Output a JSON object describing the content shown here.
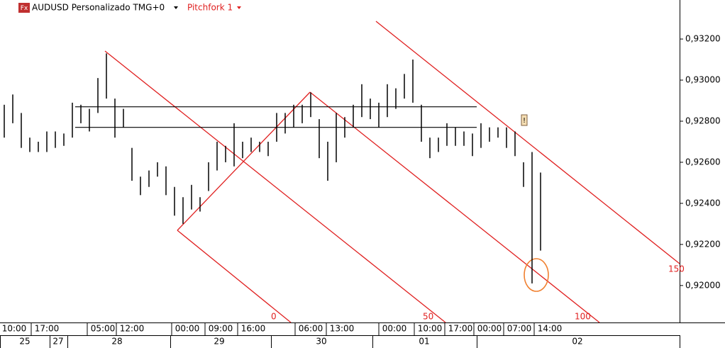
{
  "header": {
    "icon": "Fx",
    "symbol": "AUDUSD Personalizado TMG+0",
    "tool": "Pitchfork 1"
  },
  "chart_data": {
    "type": "range",
    "series": [
      {
        "color": "#000000",
        "high": [
          0.9288,
          0.9293,
          0.9284,
          0.9272,
          0.927,
          0.9275,
          0.9275,
          0.9274,
          0.9289,
          0.9288,
          0.9286,
          0.9301,
          0.9313,
          0.9291,
          0.9286,
          0.9267,
          0.9253,
          0.9256,
          0.926,
          0.9258,
          0.9248,
          0.9243,
          0.9249,
          0.9243,
          0.926,
          0.927,
          0.9268,
          0.9279,
          0.927,
          0.9272,
          0.927,
          0.927,
          0.9284,
          0.9284,
          0.9288,
          0.9288,
          0.9294,
          0.9281,
          0.927,
          0.9284,
          0.9282,
          0.9288,
          0.9298,
          0.9291,
          0.9289,
          0.9298,
          0.9296,
          0.9303,
          0.931,
          0.9288,
          0.9272,
          0.9272,
          0.9279,
          0.9277,
          0.9275,
          0.9274,
          0.9279,
          0.9277,
          0.9277,
          0.9277,
          0.9275,
          0.926,
          0.9265,
          0.9255
        ],
        "low": [
          0.9272,
          0.9279,
          0.9267,
          0.9265,
          0.9265,
          0.9265,
          0.9267,
          0.9268,
          0.9272,
          0.9279,
          0.9275,
          0.9284,
          0.9291,
          0.9272,
          0.9277,
          0.9251,
          0.9244,
          0.9248,
          0.9253,
          0.9244,
          0.9234,
          0.923,
          0.9237,
          0.9236,
          0.9246,
          0.9256,
          0.926,
          0.9258,
          0.9262,
          0.9265,
          0.9265,
          0.9263,
          0.927,
          0.9274,
          0.9277,
          0.9279,
          0.9282,
          0.9262,
          0.9251,
          0.926,
          0.9272,
          0.9277,
          0.9282,
          0.9281,
          0.9277,
          0.9282,
          0.9286,
          0.9291,
          0.9289,
          0.927,
          0.9262,
          0.9265,
          0.9268,
          0.9268,
          0.9268,
          0.9263,
          0.9267,
          0.927,
          0.9272,
          0.9267,
          0.9263,
          0.9248,
          0.9201,
          0.9217
        ]
      }
    ],
    "ylim": [
      0.9182,
      0.9339
    ],
    "yticks": [
      {
        "value": 0.92,
        "label": "0,92000"
      },
      {
        "value": 0.922,
        "label": "0,92200"
      },
      {
        "value": 0.924,
        "label": "0,92400"
      },
      {
        "value": 0.926,
        "label": "0,92600"
      },
      {
        "value": 0.928,
        "label": "0,92800"
      },
      {
        "value": 0.93,
        "label": "0,93000"
      },
      {
        "value": 0.932,
        "label": "0,93200"
      }
    ],
    "hlines": [
      0.9287,
      0.9277
    ],
    "pitchfork_levels": [
      0,
      50,
      100,
      150
    ],
    "time_labels": [
      "10:00",
      "17:00",
      "05:00",
      "12:00",
      "00:00",
      "09:00",
      "16:00",
      "06:00",
      "13:00",
      "00:00",
      "10:00",
      "17:00",
      "00:00",
      "07:00",
      "14:00"
    ],
    "date_labels": [
      "25",
      "27",
      "28",
      "29",
      "30",
      "01",
      "02"
    ]
  }
}
